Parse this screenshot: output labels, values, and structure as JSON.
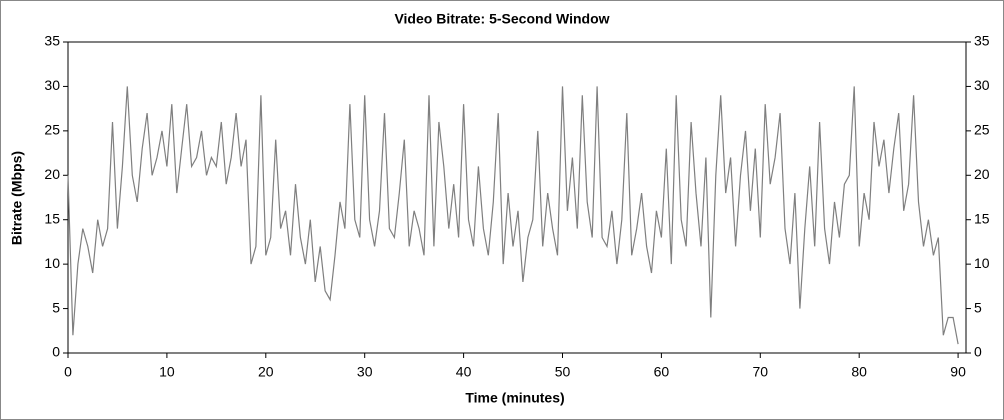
{
  "chart_data": {
    "type": "line",
    "title": "Video Bitrate: 5-Second Window",
    "x_label": "Time (minutes)",
    "y_label": "Bitrate (Mbps)",
    "xlim": [
      0,
      90.8
    ],
    "ylim": [
      0,
      35
    ],
    "xticks": [
      0,
      10,
      20,
      30,
      40,
      50,
      60,
      70,
      80,
      90
    ],
    "yticks": [
      0,
      5,
      10,
      15,
      20,
      25,
      30,
      35
    ],
    "y2ticks": [
      0,
      5,
      10,
      15,
      20,
      25,
      30,
      35
    ],
    "grid": false,
    "series": [
      {
        "color": "#7f7f7f",
        "x": [
          0,
          0.5,
          1,
          1.5,
          2,
          2.5,
          3,
          3.5,
          4,
          4.5,
          5,
          5.5,
          6,
          6.5,
          7,
          7.5,
          8,
          8.5,
          9,
          9.5,
          10,
          10.5,
          11,
          11.5,
          12,
          12.5,
          13,
          13.5,
          14,
          14.5,
          15,
          15.5,
          16,
          16.5,
          17,
          17.5,
          18,
          18.5,
          19,
          19.5,
          20,
          20.5,
          21,
          21.5,
          22,
          22.5,
          23,
          23.5,
          24,
          24.5,
          25,
          25.5,
          26,
          26.5,
          27,
          27.5,
          28,
          28.5,
          29,
          29.5,
          30,
          30.5,
          31,
          31.5,
          32,
          32.5,
          33,
          33.5,
          34,
          34.5,
          35,
          35.5,
          36,
          36.5,
          37,
          37.5,
          38,
          38.5,
          39,
          39.5,
          40,
          40.5,
          41,
          41.5,
          42,
          42.5,
          43,
          43.5,
          44,
          44.5,
          45,
          45.5,
          46,
          46.5,
          47,
          47.5,
          48,
          48.5,
          49,
          49.5,
          50,
          50.5,
          51,
          51.5,
          52,
          52.5,
          53,
          53.5,
          54,
          54.5,
          55,
          55.5,
          56,
          56.5,
          57,
          57.5,
          58,
          58.5,
          59,
          59.5,
          60,
          60.5,
          61,
          61.5,
          62,
          62.5,
          63,
          63.5,
          64,
          64.5,
          65,
          65.5,
          66,
          66.5,
          67,
          67.5,
          68,
          68.5,
          69,
          69.5,
          70,
          70.5,
          71,
          71.5,
          72,
          72.5,
          73,
          73.5,
          74,
          74.5,
          75,
          75.5,
          76,
          76.5,
          77,
          77.5,
          78,
          78.5,
          79,
          79.5,
          80,
          80.5,
          81,
          81.5,
          82,
          82.5,
          83,
          83.5,
          84,
          84.5,
          85,
          85.5,
          86,
          86.5,
          87,
          87.5,
          88,
          88.5,
          89,
          89.5,
          90
        ],
        "values": [
          20,
          2,
          10,
          14,
          12,
          9,
          15,
          12,
          14,
          26,
          14,
          21,
          30,
          20,
          17,
          23,
          27,
          20,
          22,
          25,
          21,
          28,
          18,
          23,
          28,
          21,
          22,
          25,
          20,
          22,
          21,
          26,
          19,
          22,
          27,
          21,
          24,
          10,
          12,
          29,
          11,
          13,
          24,
          14,
          16,
          11,
          19,
          13,
          10,
          15,
          8,
          12,
          7,
          6,
          11,
          17,
          14,
          28,
          15,
          13,
          29,
          15,
          12,
          16,
          27,
          14,
          13,
          18,
          24,
          12,
          16,
          14,
          11,
          29,
          12,
          26,
          21,
          14,
          19,
          13,
          28,
          15,
          12,
          21,
          14,
          11,
          17,
          27,
          10,
          18,
          12,
          16,
          8,
          13,
          15,
          25,
          12,
          18,
          14,
          11,
          30,
          16,
          22,
          14,
          29,
          17,
          13,
          30,
          13,
          12,
          16,
          10,
          15,
          27,
          11,
          14,
          18,
          12,
          9,
          16,
          13,
          23,
          10,
          29,
          15,
          12,
          26,
          18,
          12,
          22,
          4,
          20,
          29,
          18,
          22,
          12,
          20,
          25,
          16,
          23,
          13,
          28,
          19,
          22,
          27,
          14,
          10,
          18,
          5,
          14,
          21,
          12,
          26,
          14,
          10,
          17,
          13,
          19,
          20,
          30,
          12,
          18,
          15,
          26,
          21,
          24,
          18,
          23,
          27,
          16,
          19,
          29,
          17,
          12,
          15,
          11,
          13,
          2,
          4,
          4,
          1
        ]
      }
    ]
  }
}
